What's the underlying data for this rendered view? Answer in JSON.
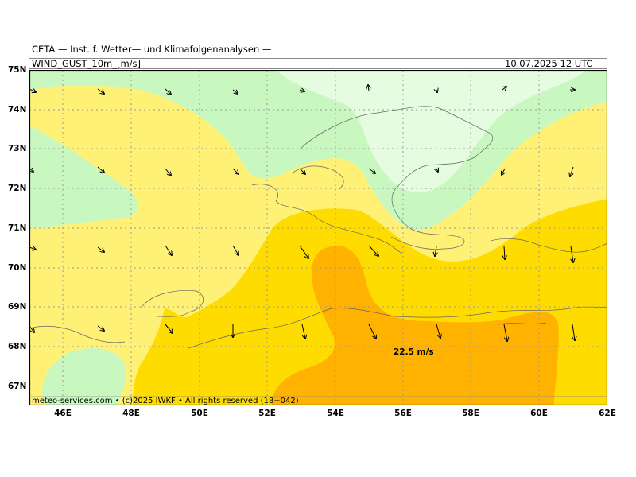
{
  "header": {
    "title": "CETA — Inst. f. Wetter— und Klimafolgenanalysen —",
    "variable": "WIND_GUST_10m_[m/s]",
    "valid_time": "10.07.2025 12 UTC"
  },
  "axes": {
    "lat_labels": [
      "75N",
      "74N",
      "73N",
      "72N",
      "71N",
      "70N",
      "69N",
      "68N",
      "67N"
    ],
    "lon_labels": [
      "46E",
      "48E",
      "50E",
      "52E",
      "54E",
      "56E",
      "58E",
      "60E",
      "62E"
    ]
  },
  "annotation": {
    "max_label": "22.5 m/s"
  },
  "footer": {
    "credit": "meteo-services.com • (c)2025 IWKF • All rights reserved (18+042)"
  },
  "colors": {
    "very_light_green": "#e6fce0",
    "light_green": "#c8f8c0",
    "light_yellow": "#fff176",
    "yellow": "#ffdc00",
    "orange": "#ffb300",
    "grid": "#999999"
  }
}
